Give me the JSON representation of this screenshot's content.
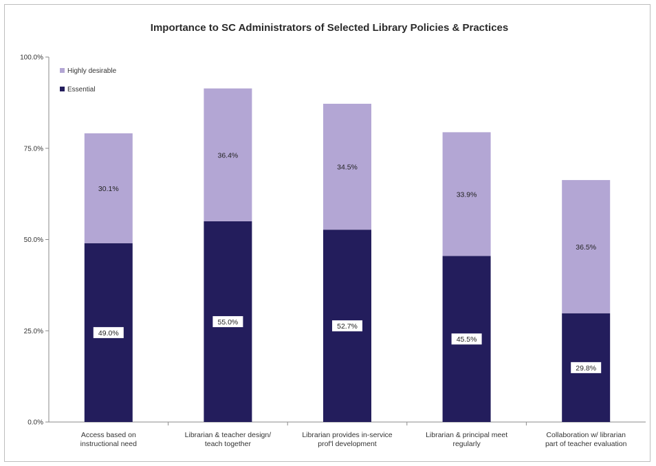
{
  "chart_data": {
    "type": "bar",
    "stacked": true,
    "title": "Importance to SC Administrators of Selected Library Policies & Practices",
    "categories": [
      [
        "Access based on",
        "instructional need"
      ],
      [
        "Librarian & teacher design/",
        "teach together"
      ],
      [
        "Librarian provides in-service",
        "prof'l development"
      ],
      [
        "Librarian & principal meet",
        "regularly"
      ],
      [
        "Collaboration w/ librarian",
        "part of teacher evaluation"
      ]
    ],
    "series": [
      {
        "name": "Essential",
        "color": "#231d5c",
        "values": [
          49.0,
          55.0,
          52.7,
          45.5,
          29.8
        ],
        "labels": [
          "49.0%",
          "55.0%",
          "52.7%",
          "45.5%",
          "29.8%"
        ]
      },
      {
        "name": "Highly desirable",
        "color": "#b3a6d4",
        "values": [
          30.1,
          36.4,
          34.5,
          33.9,
          36.5
        ],
        "labels": [
          "30.1%",
          "36.4%",
          "34.5%",
          "33.9%",
          "36.5%"
        ]
      }
    ],
    "ylim": [
      0,
      100
    ],
    "yticks": [
      "0.0%",
      "25.0%",
      "50.0%",
      "75.0%",
      "100.0%"
    ],
    "ytick_values": [
      0,
      25,
      50,
      75,
      100
    ],
    "grid": false,
    "legend": {
      "position": "top-left",
      "entries": [
        "Highly desirable",
        "Essential"
      ]
    }
  }
}
